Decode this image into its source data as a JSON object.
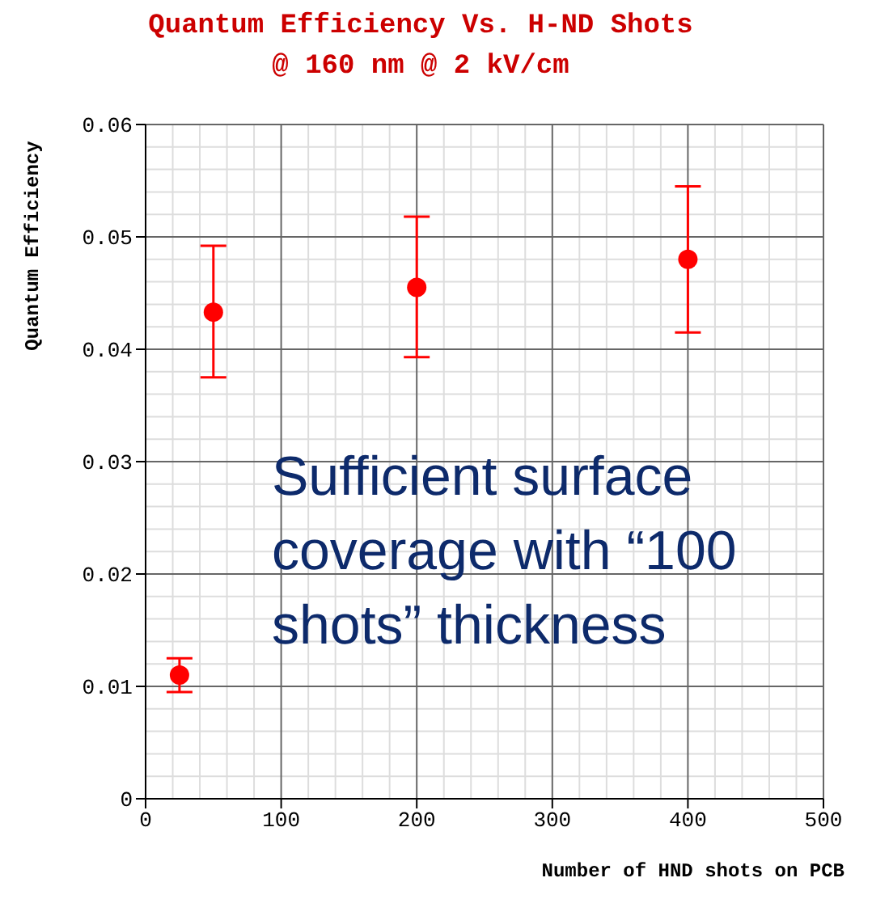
{
  "chart_data": {
    "type": "scatter",
    "title": "Quantum Efficiency Vs. H-ND Shots @ 160 nm @ 2 kV/cm",
    "xlabel": "Number of HND shots on PCB",
    "ylabel": "Quantum Efficiency",
    "x": [
      25,
      50,
      200,
      400
    ],
    "series": [
      {
        "color": "#ff0000",
        "values": [
          0.011,
          0.0433,
          0.0455,
          0.048
        ],
        "errors": [
          [
            0.0095,
            0.0125
          ],
          [
            0.0375,
            0.0492
          ],
          [
            0.0393,
            0.0518
          ],
          [
            0.0415,
            0.0545
          ]
        ]
      }
    ],
    "xlim": [
      0,
      500
    ],
    "xticks": [
      0,
      100,
      200,
      300,
      400,
      500
    ],
    "ylim": [
      0,
      0.06
    ],
    "yticks": [
      0,
      0.01,
      0.02,
      0.03,
      0.04,
      0.05,
      0.06
    ],
    "grid": true,
    "marker": "circle",
    "annotations": [
      "Sufficient surface coverage with “100 shots” thickness"
    ]
  }
}
